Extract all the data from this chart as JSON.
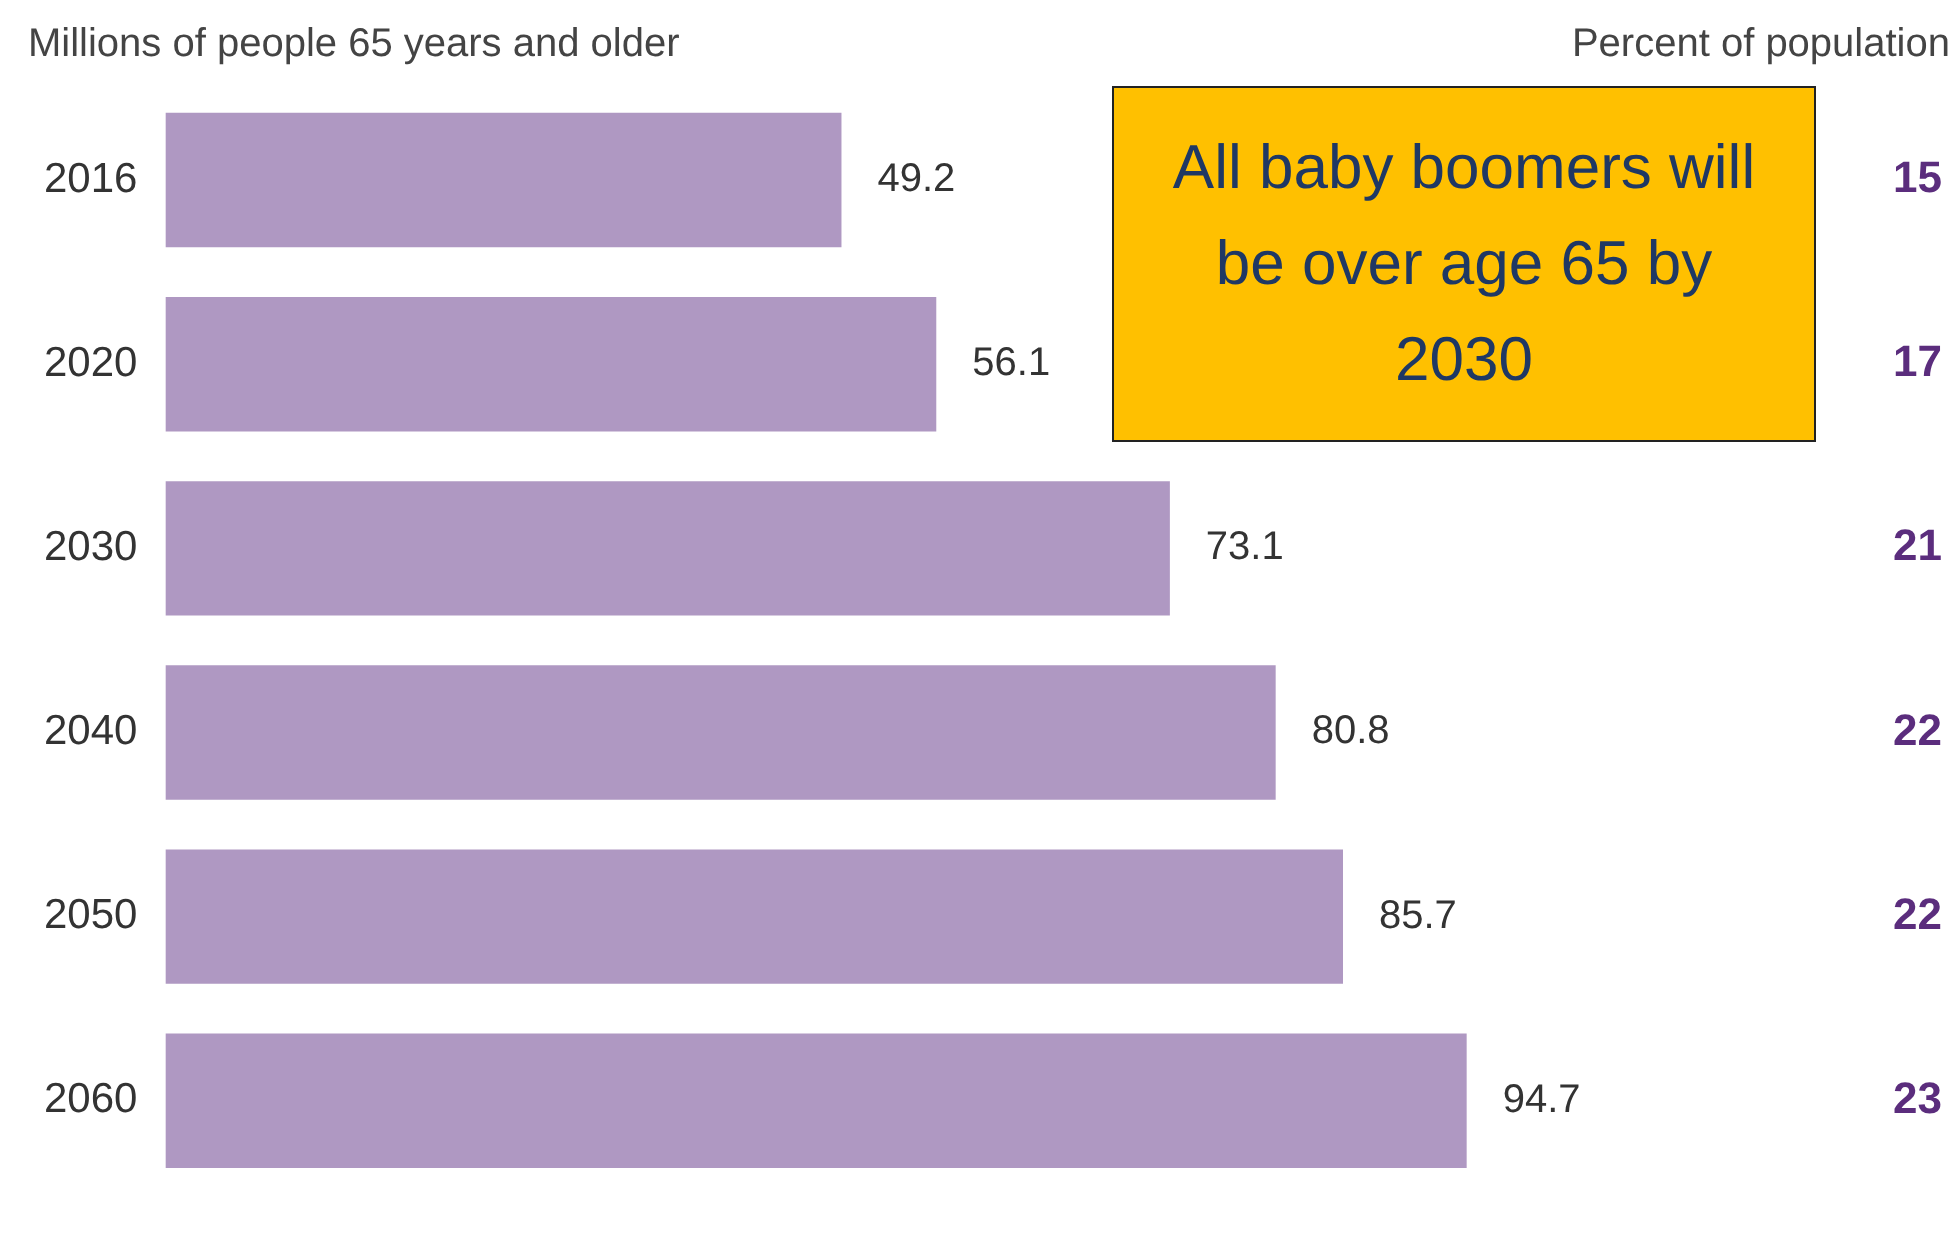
{
  "chart_data": {
    "type": "bar",
    "orientation": "horizontal",
    "title": "Millions of people 65 years and older",
    "subtitle": "Percent of population",
    "categories": [
      "2016",
      "2020",
      "2030",
      "2040",
      "2050",
      "2060"
    ],
    "values": [
      49.2,
      56.1,
      73.1,
      80.8,
      85.7,
      94.7
    ],
    "color": "#af98c2",
    "data_labels": true,
    "grid": false,
    "legend": false,
    "tick_labels": "y",
    "annotations": [
      "All baby boomers will be over age 65 by 2030",
      "15",
      "17",
      "21",
      "22",
      "22",
      "23"
    ]
  }
}
